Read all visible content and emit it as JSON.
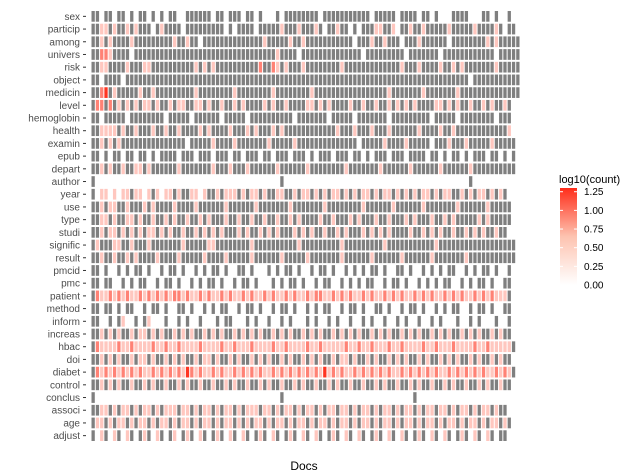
{
  "chart_data": {
    "type": "heatmap",
    "title": "",
    "xlabel": "Docs",
    "ylabel": "",
    "x_tick_labels": "none",
    "categories_y": [
      "sex",
      "particip",
      "among",
      "univers",
      "risk",
      "object",
      "medicin",
      "level",
      "hemoglobin",
      "health",
      "examin",
      "epub",
      "depart",
      "author",
      "year",
      "use",
      "type",
      "studi",
      "signific",
      "result",
      "pmcid",
      "pmc",
      "patient",
      "method",
      "inform",
      "increas",
      "hbac",
      "doi",
      "diabet",
      "control",
      "conclus",
      "associ",
      "age",
      "adjust"
    ],
    "n_docs": 100,
    "value_name": "log10(count)",
    "legend": {
      "title": "log10(count)",
      "ticks": [
        "1.25",
        "1.00",
        "0.75",
        "0.50",
        "0.25",
        "0.00"
      ],
      "min": 0,
      "max": 1.3,
      "placement": "right"
    },
    "colors": {
      "low": "#fff5f0",
      "high": "#ff2d1a",
      "missing": "#7f7f7f",
      "zero": "#ffffff"
    },
    "notes": "Grey tiles: count missing/NA; white: value 0; red gradient: log10(count) up to ~1.3",
    "rows": {
      "sex": "NN.NN.NN.N.NN.N.N.NN..NNNNNN.NN.NNN.NN.N...N.NNNNNNNN.NNNNNNNNNNN.NNNNN.NNNN.NN.N...NNNN...NN.N..N..NN",
      "particip": "NN11N1NN1N1NNN.N1NNNN.NNNNNNNNN.N.NNNN.NNNNN1NNN1NNN1N.NN1NN.N.NNN11NN1.NN1NN1NNNNN1NNNNN1NNNN1N.NN",
      "among": "NN1N1NNNN1NNNNNNNNN1NN1NN.NNNNNNNNNNNNNN1NNNNN1NN1NNNNNNNNNNN.NNN1NN1NNN.NNN1NNNNNN.NNNNNNNN1N1NNNNN",
      "univers": "NN221NNNN.NNNNNNNNNNNNNNNNNNNNNNNNNNNNNNNNN1NNNN.NNNNNNNNNNNNNN.NNNNNNNNN.NNNNNNN.NNNNNNNNNNNN.NNNNN",
      "risk": "NN11NNNN1NNN11NNNNNNNNNN1N1N1NNNNNNNNNN2NN21N1NNN1NNNNNNNN1NNNNNNNNNNNNN1NNN1NNNN1NN1N1NNNNNNN1NNNNN",
      "object": "NN.NNNN.NNNNNNNNNNNNNNNNNNNNNNNNNNNNNNNNNNNNNNNNNNNNNNNNNNNNNNNNNNNNNNNNNNNNNNNNNNNNNNNN.NNNNNNNNNNN",
      "medicin": "NN23N1NNNNN1NN1NNNNNNNNN1NNNNNNNN1NNNNNNNN1NNNNNNNN1NNNNNNNNNNNNNNNNN1NNNNNNN1NNNNNNN1NNNNNNNNNNNNNN",
      "level": "N22N2N1N1N1N11N1NN1N11NN11N1NN1NN1N1NNNN1N1NN1NNNN11N1N1NNNN1NN1NN1NN1N1N1N1NNNN11N1N1NN1NN1N1NN1N",
      "hemoglobin": "NN.NNNNN.NNNNNNNN.NNNNN.NNNNNN.NNNNN.NNNNNNNNNN.NNNNNNN.NNNNN.NNNNNNN.NNNNNNNNN.NNNNN.NNNNNNNN.NNN",
      "health": "NN1111N1NN1NNN1NN1NN1NNNN1N1NNNN1NNN1N1NNN1N1NNNNNNNNNNNN1NNN1NNN1NNN1NNNNNN1NNNN1NN1NNNNNNNNNNNN1",
      "examin": "NN1N1N1NNNNNNNNNNNNNNN.NNNNN1NNNN1NNNNNNN1NNNNN1NNNNNNNNNNNNNN.NNNNN1NNNN1NNNNN.NNN1NNN1NNNNN1NNNNN",
      "epub": "NN.N.NN.NN.NN.N.NNNN.NNN.NNN.NNN.NN.NNN.NN.NNN.NNN.N.NNN.NNN.NN.N.NNN.NNN.NNNN.NN.N.NN.N.NNN.NN.N.N",
      "depart": "NN1N1NN1NN11N1NNNNNN1NNNNNNN1NNN1NNN1NNNNNN1NNNNNN1NNNNNNNN1NNNNNNN1NNNNNN1NNNNNN1NNNNNN1NNNNNNNNNN",
      "author": "N...........................................N...........................................N...........",
      "year": "N.11.1.11N11.1N1.11N1NN11.1NN1N111N1N11N1NN11NN1N11N1N1N11N1N1N11N1N11N1N1N1N11N1N11NN1N1N11N1N1N",
      "use": "NN1N11NN1NNN1N1NNNN1NNNN1NNNNNN1NNNNNN1NNNNNNN1NNNNNNN1NNNNNNNN1NNNNNN1NNNNNN1NNNNNNN1NNNNNN1NNNNN",
      "type": "NN11N1NN11N1NN1NN1N1NN1NN1N1NNN1NN1NN1NN1NN1NN1N1NNNN1NN1NNN1N1NNN1NN1NNN1N1NNN1NN1N1NNNNN1N1NNNNN",
      "studi": "NN1N11N1N1N1N11N1N1NN1NN1N1N1N1NNN1N1NN1N1N1NNN1N1N1NN1NN1N1NNN1N1N1N1NNNN1NN1N1N1NN1NN1N1N1NN1NN",
      "signific": "N1NNN11NN1NNN1NNNNNNN1NNNNN11NNNNNNNN1NNNNNNNNNN1NNNNNNNNN1NNNNNNNNN1NNNNNNNNNNN1NNNNNNNNNNNNNNNNNN",
      "result": "NN1NN1NN1N1NNNN1NNNN1NNNNN1NNNN1NNNNN1NNNNNN1NNNNN1NNNNNNN1NNNNNN1NNNNNN1NNNNNN1NNNNNNN1NNNNNNNNNNN",
      "pmcid": "NN.N..N.N.NN.N..N.NN.N..N.N.NN.N..NN.N...N.N.NN.N..N.NN.N..N.N.N.NN.N..NN.N..N.N.N.NN..N.N.NN.N..N",
      "pmc": "NN.NN..N.N.NN..N.NN.N..N.N.NN.N..N.NN.N...N.N.NN.N..N.NN..N.N.N.NN..N.NN.N..N.N.N.NN..N.N.NN.N..NN",
      "patient": "N211212121121212121221211212112121121211212112121121221121212112121121212112121211212121121212111N",
      "method": "NN.NN.N.NN..N.NN.N..NN.N..N.N.NN..N.NN.N..N.NN.N..N.N.NN..N.NN.N..NN.N..N.NN.N..N.N.NN..N.NN.N..NN",
      "inform": "NN..N.N1..N.N1...N..N.N..N...N.NN...N.N..N..N.N...N.N..N.N..N..N.N..N..N.N..N..N.N...N..N.N...N..N",
      "increas": "NN1N1N1NN1N11N1N1NN1N1N1NN1N1N1NN1N1N1N1NN1N1N1NN1N1N1NN1N1N1N1NN1N1N1NN1N1N1NN1N1N1NN1N1N1NN1N1NN",
      "hbac": "N2111121121111211211211112111121121112111121121111211211111211211211121121111211211121111211211111N",
      "doi": "NN1N1N1NN1N11N1NN1N1N1NN1N11N1NN1N1NN1N1N1NN1N1NN1N1N1NN1N11N1NN1N1NN1N1N1NN1N1NN1N1N1NN1N1NN1N1NN",
      "diabet": "N2121212121211212121213212112121121212121121212121212131212112121212121121212121211212121212112121N",
      "control": "NN1N1N1NN1NN1N1NN1NN1N1NN1NN1NN1N1NN1NN1N1NN1NN1N1NN1NN1N1NN1NN1NN1N1NN1NN1N1NN1NN1N1NN1NN1N1NN1NN",
      "conclus": "N...........................................N..............................N........................",
      "associ": "NN11N1N11N1N11N1N111N11N1N11N1N11N1N111N11N1N11N1N11N1N11N11N1N11N1N11N1N11N1N11N11N1N11N1N11N1NN",
      "age": "N11N1N11N1N11N1N11N1N11N1N11N1N11N1N1N11N1N11N1N11N1N11N1N11N1N11N1N11N1N11N1N11N1N11N1N11N1N11N1N",
      "adjust": "N.1N.1N.1N.N1N.1N.N1.N1N.1N.N1N.1N.1N.N1N.1N.N1N.1N.1N.N1N.1N.1N.N1N.1N.1N.N1N.1N.1N.N1N.1N.1N.NN"
    }
  }
}
